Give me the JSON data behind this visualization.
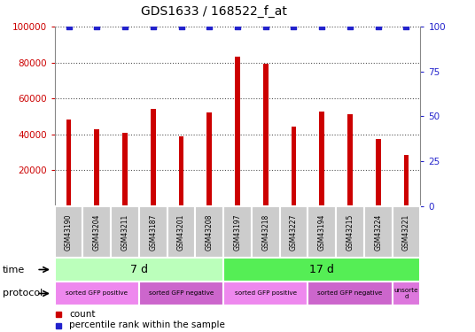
{
  "title": "GDS1633 / 168522_f_at",
  "samples": [
    "GSM43190",
    "GSM43204",
    "GSM43211",
    "GSM43187",
    "GSM43201",
    "GSM43208",
    "GSM43197",
    "GSM43218",
    "GSM43227",
    "GSM43194",
    "GSM43215",
    "GSM43224",
    "GSM43221"
  ],
  "counts": [
    48000,
    43000,
    41000,
    54000,
    39000,
    52000,
    83000,
    79500,
    44500,
    52500,
    51000,
    37500,
    28500
  ],
  "percentile": [
    100,
    100,
    100,
    100,
    100,
    100,
    100,
    100,
    100,
    100,
    100,
    100,
    100
  ],
  "bar_color": "#cc0000",
  "dot_color": "#2222cc",
  "ylim_left": [
    0,
    100000
  ],
  "ylim_right": [
    0,
    100
  ],
  "yticks_left": [
    20000,
    40000,
    60000,
    80000,
    100000
  ],
  "yticks_right": [
    0,
    25,
    50,
    75,
    100
  ],
  "time_groups": [
    {
      "label": "7 d",
      "start": 0,
      "end": 6,
      "color": "#bbffbb"
    },
    {
      "label": "17 d",
      "start": 6,
      "end": 13,
      "color": "#55ee55"
    }
  ],
  "protocol_groups": [
    {
      "label": "sorted GFP positive",
      "start": 0,
      "end": 3,
      "color": "#ee88ee"
    },
    {
      "label": "sorted GFP negative",
      "start": 3,
      "end": 6,
      "color": "#cc66cc"
    },
    {
      "label": "sorted GFP positive",
      "start": 6,
      "end": 9,
      "color": "#ee88ee"
    },
    {
      "label": "sorted GFP negative",
      "start": 9,
      "end": 12,
      "color": "#cc66cc"
    },
    {
      "label": "unsorte\nd",
      "start": 12,
      "end": 13,
      "color": "#dd77dd"
    }
  ],
  "time_label": "time",
  "protocol_label": "protocol",
  "legend_count_label": "count",
  "legend_pct_label": "percentile rank within the sample",
  "bg_color": "#ffffff",
  "grid_color": "#555555",
  "sample_bg": "#cccccc",
  "sample_border": "#aaaaaa"
}
